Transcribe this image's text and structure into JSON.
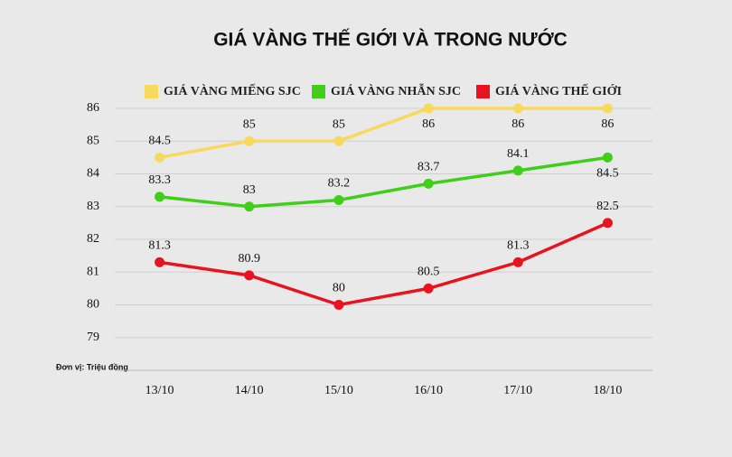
{
  "chart_data": {
    "type": "line",
    "title": "GIÁ VÀNG THẾ GIỚI VÀ TRONG NƯỚC",
    "note": "Đơn vị: Triệu đồng",
    "categories": [
      "13/10",
      "14/10",
      "15/10",
      "16/10",
      "17/10",
      "18/10"
    ],
    "series": [
      {
        "name": "GIÁ VÀNG MIẾNG SJC",
        "color": "#f9d95c",
        "values": [
          84.5,
          85,
          85,
          86,
          86,
          86
        ]
      },
      {
        "name": "GIÁ VÀNG NHẪN SJC",
        "color": "#3fce1a",
        "values": [
          83.3,
          83,
          83.2,
          83.7,
          84.1,
          84.5
        ]
      },
      {
        "name": "GIÁ VÀNG THẾ GIỚI",
        "color": "#e8131f",
        "values": [
          81.3,
          80.9,
          80,
          80.5,
          81.3,
          82.5
        ]
      }
    ],
    "ylim": [
      78,
      86
    ],
    "yticks": [
      79,
      80,
      81,
      82,
      83,
      84,
      85,
      86
    ],
    "grid": true
  }
}
